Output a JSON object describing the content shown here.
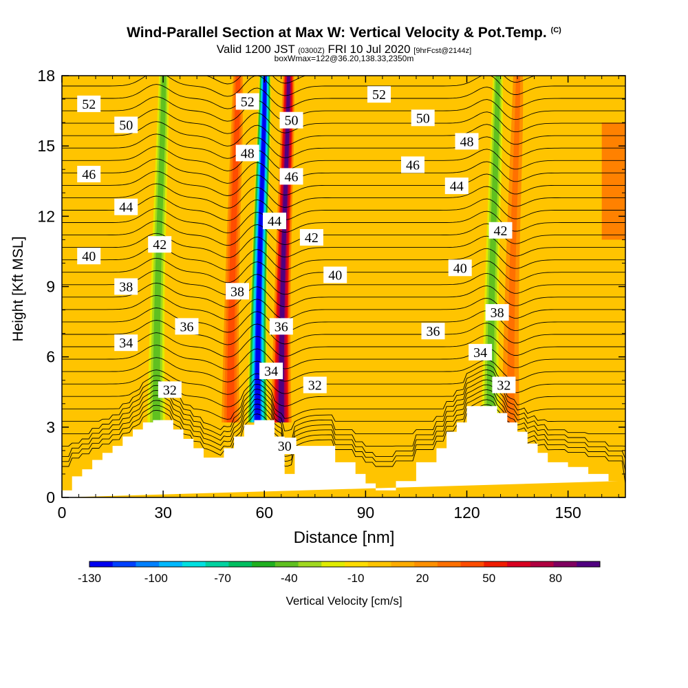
{
  "title": {
    "main": "Wind-Parallel Section at Max W: Vertical Velocity & Pot.Temp.",
    "copyright": "(C)",
    "valid_prefix": "Valid 1200 JST",
    "utc": "(0300Z)",
    "valid_date": "FRI 10 Jul 2020",
    "forecast": "[9hrFcst@2144z]",
    "box": "boxWmax=122@36.20,138.33,2350m"
  },
  "chart_data": {
    "type": "heatmap",
    "xlabel": "Distance [nm]",
    "ylabel": "Height [Kft MSL]",
    "xlim": [
      0,
      167
    ],
    "ylim": [
      0,
      18
    ],
    "x_ticks": [
      0,
      30,
      60,
      90,
      120,
      150
    ],
    "y_ticks": [
      0,
      3,
      6,
      9,
      12,
      15,
      18
    ],
    "field": "Vertical Velocity",
    "colorbar": {
      "label": "Vertical Velocity [cm/s]",
      "range": [
        -130,
        100
      ],
      "tick_values": [
        -130,
        -100,
        -70,
        -40,
        -10,
        20,
        50,
        80
      ],
      "colors": [
        "#0000f0",
        "#0040ff",
        "#0080ff",
        "#00b8ff",
        "#00e0e0",
        "#00d2a0",
        "#00be60",
        "#20b020",
        "#60c020",
        "#a0d820",
        "#e0ec00",
        "#ffdc00",
        "#ffc400",
        "#ffac00",
        "#ff9000",
        "#ff7000",
        "#ff4c00",
        "#f01c00",
        "#d80020",
        "#b00040",
        "#800060",
        "#500080"
      ]
    },
    "updraft_cores": [
      {
        "x": 28,
        "value": -45
      },
      {
        "x": 50,
        "value": 40
      },
      {
        "x": 58,
        "value": -125
      },
      {
        "x": 65,
        "value": 90
      },
      {
        "x": 127,
        "value": -40
      },
      {
        "x": 133,
        "value": 35
      }
    ],
    "terrain": {
      "x": [
        0,
        3,
        3,
        6,
        6,
        9,
        9,
        12,
        12,
        15,
        15,
        18,
        18,
        21,
        21,
        24,
        24,
        27,
        27,
        33,
        33,
        36,
        36,
        39,
        39,
        42,
        42,
        48,
        48,
        51,
        51,
        54,
        54,
        57,
        57,
        63,
        63,
        66,
        66,
        69,
        69,
        75,
        75,
        81,
        81,
        87,
        87,
        90,
        90,
        93,
        93,
        96,
        96,
        99,
        99,
        105,
        105,
        111,
        111,
        114,
        114,
        117,
        117,
        120,
        120,
        123,
        123,
        129,
        129,
        132,
        132,
        135,
        135,
        138,
        138,
        141,
        141,
        144,
        144,
        150,
        150,
        156,
        156,
        162,
        162,
        165,
        165,
        167
      ],
      "y": [
        0.3,
        0.3,
        0.9,
        0.9,
        1.2,
        1.2,
        1.6,
        1.6,
        1.9,
        1.9,
        2.2,
        2.2,
        2.6,
        2.6,
        2.9,
        2.9,
        3.2,
        3.2,
        3.3,
        3.3,
        2.9,
        2.9,
        2.5,
        2.5,
        2.1,
        2.1,
        1.7,
        1.7,
        2.1,
        2.1,
        2.6,
        2.6,
        3.1,
        3.1,
        3.3,
        3.3,
        2.6,
        2.6,
        1.0,
        1.0,
        2.2,
        2.2,
        2.2,
        2.2,
        1.5,
        1.5,
        1.0,
        1.0,
        0.6,
        0.6,
        0.3,
        0.3,
        0.3,
        0.3,
        0.7,
        0.7,
        1.5,
        1.5,
        2.1,
        2.1,
        2.8,
        2.8,
        3.2,
        3.2,
        3.9,
        3.9,
        3.9,
        3.9,
        3.6,
        3.6,
        3.2,
        3.2,
        2.8,
        2.8,
        2.3,
        2.3,
        1.9,
        1.9,
        1.5,
        1.5,
        1.3,
        1.3,
        1.0,
        1.0,
        0.7,
        0.7,
        0.7
      ]
    },
    "isentrope_labels": [
      {
        "text": "52",
        "x": 8,
        "y": 16.8
      },
      {
        "text": "50",
        "x": 19,
        "y": 15.9
      },
      {
        "text": "46",
        "x": 8,
        "y": 13.8
      },
      {
        "text": "44",
        "x": 19,
        "y": 12.4
      },
      {
        "text": "40",
        "x": 8,
        "y": 10.3
      },
      {
        "text": "42",
        "x": 29,
        "y": 10.8
      },
      {
        "text": "38",
        "x": 19,
        "y": 9.0
      },
      {
        "text": "36",
        "x": 37,
        "y": 7.3
      },
      {
        "text": "34",
        "x": 19,
        "y": 6.6
      },
      {
        "text": "32",
        "x": 32,
        "y": 4.6
      },
      {
        "text": "52",
        "x": 55,
        "y": 16.9
      },
      {
        "text": "48",
        "x": 55,
        "y": 14.7
      },
      {
        "text": "50",
        "x": 68,
        "y": 16.1
      },
      {
        "text": "46",
        "x": 68,
        "y": 13.7
      },
      {
        "text": "44",
        "x": 63,
        "y": 11.8
      },
      {
        "text": "42",
        "x": 74,
        "y": 11.1
      },
      {
        "text": "38",
        "x": 52,
        "y": 8.8
      },
      {
        "text": "36",
        "x": 65,
        "y": 7.3
      },
      {
        "text": "40",
        "x": 81,
        "y": 9.5
      },
      {
        "text": "34",
        "x": 62,
        "y": 5.4
      },
      {
        "text": "32",
        "x": 75,
        "y": 4.8
      },
      {
        "text": "30",
        "x": 66,
        "y": 2.2
      },
      {
        "text": "52",
        "x": 94,
        "y": 17.2
      },
      {
        "text": "50",
        "x": 107,
        "y": 16.2
      },
      {
        "text": "48",
        "x": 120,
        "y": 15.2
      },
      {
        "text": "46",
        "x": 104,
        "y": 14.2
      },
      {
        "text": "44",
        "x": 117,
        "y": 13.3
      },
      {
        "text": "42",
        "x": 130,
        "y": 11.4
      },
      {
        "text": "40",
        "x": 118,
        "y": 9.8
      },
      {
        "text": "38",
        "x": 129,
        "y": 7.9
      },
      {
        "text": "36",
        "x": 110,
        "y": 7.1
      },
      {
        "text": "34",
        "x": 124,
        "y": 6.2
      },
      {
        "text": "32",
        "x": 131,
        "y": 4.8
      }
    ]
  }
}
